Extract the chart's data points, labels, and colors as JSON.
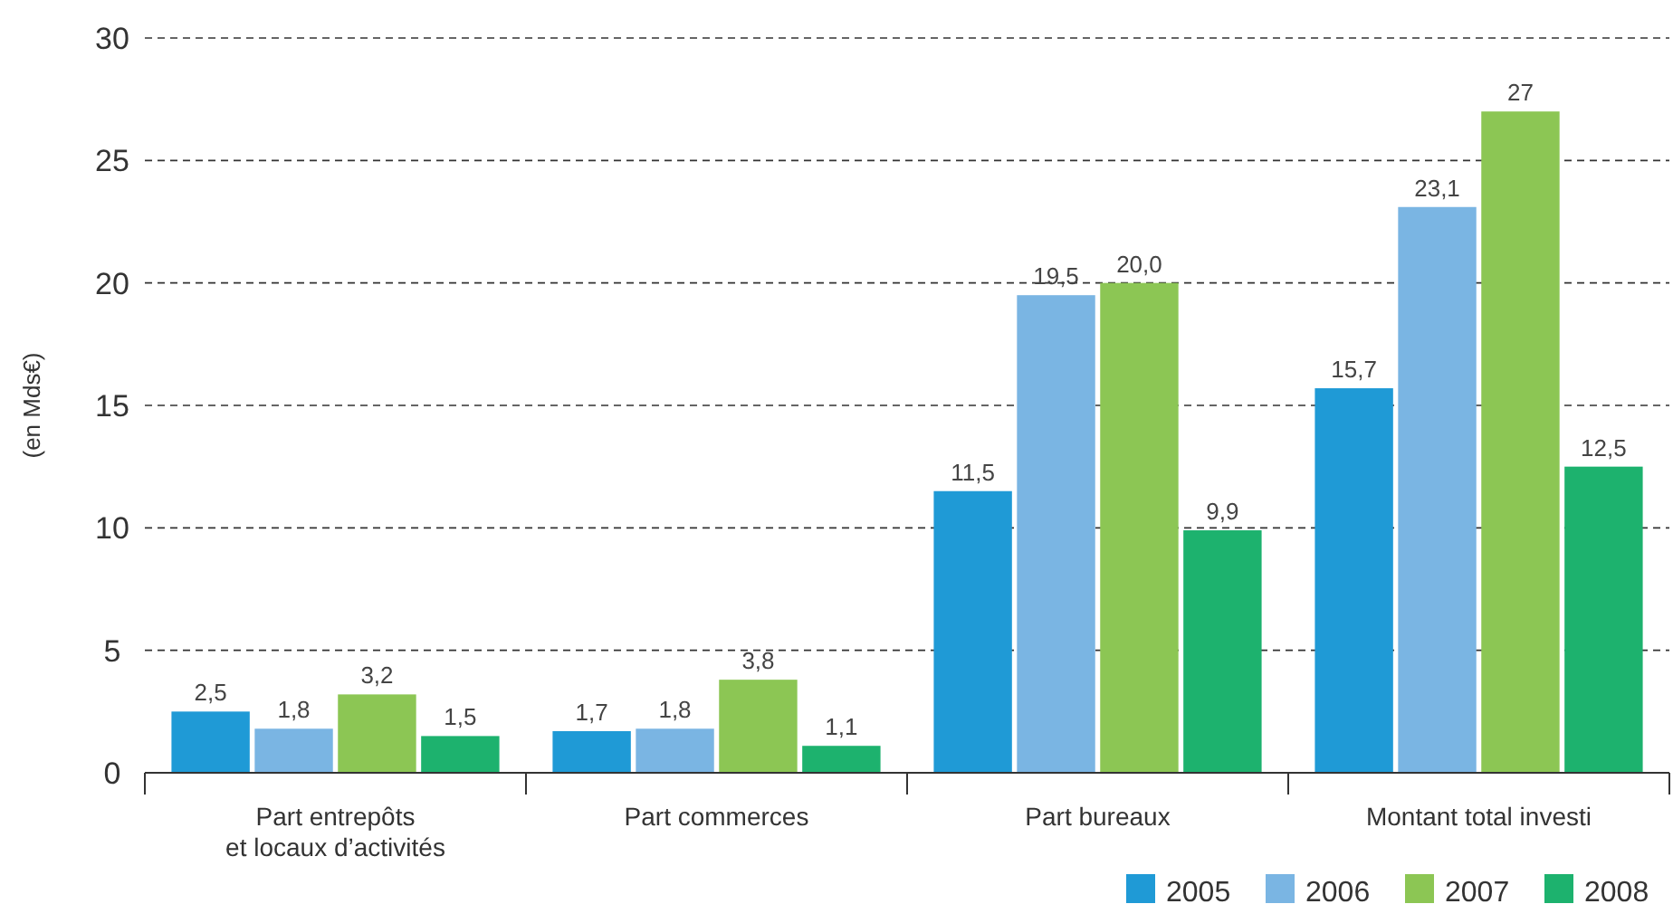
{
  "chart_data": {
    "type": "bar",
    "ylabel": "(en Mds€)",
    "categories": [
      "Part entrepôts et locaux d’activités",
      "Part commerces",
      "Part bureaux",
      "Montant total investi"
    ],
    "series": [
      {
        "name": "2005",
        "color": "#1f9ad6",
        "values": [
          2.5,
          1.7,
          11.5,
          15.7
        ],
        "value_labels": [
          "2,5",
          "1,7",
          "11,5",
          "15,7"
        ]
      },
      {
        "name": "2006",
        "color": "#7ab5e3",
        "values": [
          1.8,
          1.8,
          19.5,
          23.1
        ],
        "value_labels": [
          "1,8",
          "1,8",
          "19,5",
          "23,1"
        ]
      },
      {
        "name": "2007",
        "color": "#8cc654",
        "values": [
          3.2,
          3.8,
          20.0,
          27
        ],
        "value_labels": [
          "3,2",
          "3,8",
          "20,0",
          "27"
        ]
      },
      {
        "name": "2008",
        "color": "#1db26e",
        "values": [
          1.5,
          1.1,
          9.9,
          12.5
        ],
        "value_labels": [
          "1,5",
          "1,1",
          "9,9",
          "12,5"
        ]
      }
    ],
    "ylim": [
      0,
      30
    ],
    "yticks": [
      0,
      5,
      10,
      15,
      20,
      25,
      30
    ],
    "grid": "y",
    "legend": "bottom right"
  }
}
